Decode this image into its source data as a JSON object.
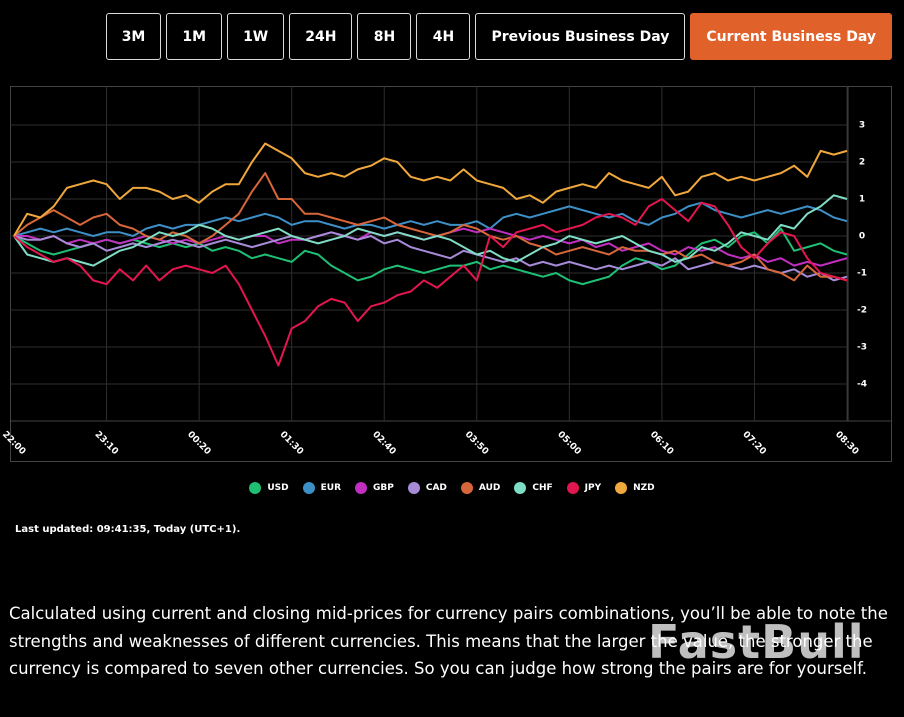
{
  "buttons": [
    "3M",
    "1M",
    "1W",
    "24H",
    "8H",
    "4H",
    "Previous Business Day",
    "Current Business Day"
  ],
  "active_button": 7,
  "chart_data": {
    "type": "line",
    "categories": [
      "22:00",
      null,
      null,
      null,
      null,
      null,
      null,
      "23:10",
      null,
      null,
      null,
      null,
      null,
      null,
      "00:20",
      null,
      null,
      null,
      null,
      null,
      null,
      "01:30",
      null,
      null,
      null,
      null,
      null,
      null,
      "02:40",
      null,
      null,
      null,
      null,
      null,
      null,
      "03:50",
      null,
      null,
      null,
      null,
      null,
      null,
      "05:00",
      null,
      null,
      null,
      null,
      null,
      null,
      "06:10",
      null,
      null,
      null,
      null,
      null,
      null,
      "07:20",
      null,
      null,
      null,
      null,
      null,
      null,
      "08:30"
    ],
    "ylim": [
      -5,
      4
    ],
    "yticks": [
      -4,
      -3,
      -2,
      -1,
      0,
      1,
      2,
      3
    ],
    "grid": true,
    "legend": "bottom",
    "series": [
      {
        "name": "USD",
        "color": "#1fbf74",
        "values": [
          0,
          -0.2,
          -0.4,
          -0.5,
          -0.4,
          -0.3,
          -0.2,
          -0.1,
          -0.2,
          -0.1,
          -0.2,
          -0.3,
          -0.2,
          -0.3,
          -0.2,
          -0.4,
          -0.3,
          -0.4,
          -0.6,
          -0.5,
          -0.6,
          -0.7,
          -0.4,
          -0.5,
          -0.8,
          -1.0,
          -1.2,
          -1.1,
          -0.9,
          -0.8,
          -0.9,
          -1.0,
          -0.9,
          -0.8,
          -0.8,
          -0.7,
          -0.9,
          -0.8,
          -0.9,
          -1.0,
          -1.1,
          -1.0,
          -1.2,
          -1.3,
          -1.2,
          -1.1,
          -0.8,
          -0.6,
          -0.7,
          -0.9,
          -0.8,
          -0.5,
          -0.2,
          -0.1,
          -0.3,
          0.0,
          0.1,
          -0.2,
          0.2,
          -0.4,
          -0.3,
          -0.2,
          -0.4,
          -0.5
        ]
      },
      {
        "name": "EUR",
        "color": "#3d8fc6",
        "values": [
          0,
          0.1,
          0.2,
          0.1,
          0.2,
          0.1,
          0.0,
          0.1,
          0.1,
          0.0,
          0.2,
          0.3,
          0.2,
          0.3,
          0.3,
          0.4,
          0.5,
          0.4,
          0.5,
          0.6,
          0.5,
          0.3,
          0.4,
          0.4,
          0.3,
          0.2,
          0.3,
          0.3,
          0.2,
          0.3,
          0.4,
          0.3,
          0.4,
          0.3,
          0.3,
          0.4,
          0.2,
          0.5,
          0.6,
          0.5,
          0.6,
          0.7,
          0.8,
          0.7,
          0.6,
          0.5,
          0.6,
          0.4,
          0.3,
          0.5,
          0.6,
          0.8,
          0.9,
          0.7,
          0.6,
          0.5,
          0.6,
          0.7,
          0.6,
          0.7,
          0.8,
          0.7,
          0.5,
          0.4
        ]
      },
      {
        "name": "GBP",
        "color": "#c02fc0",
        "values": [
          0,
          0.0,
          -0.1,
          0.0,
          -0.2,
          -0.1,
          -0.2,
          -0.1,
          -0.2,
          -0.1,
          0.0,
          -0.1,
          -0.2,
          -0.1,
          -0.2,
          -0.1,
          0.0,
          -0.1,
          0.0,
          0.0,
          -0.2,
          -0.1,
          -0.1,
          0.0,
          0.1,
          0.0,
          -0.1,
          0.1,
          0.0,
          0.1,
          0.0,
          -0.1,
          0.0,
          0.1,
          0.2,
          0.1,
          0.2,
          0.1,
          0.0,
          -0.1,
          0.0,
          -0.1,
          -0.2,
          -0.1,
          -0.3,
          -0.2,
          -0.4,
          -0.3,
          -0.2,
          -0.4,
          -0.5,
          -0.3,
          -0.4,
          -0.3,
          -0.5,
          -0.6,
          -0.5,
          -0.7,
          -0.6,
          -0.8,
          -0.7,
          -0.8,
          -0.7,
          -0.6
        ]
      },
      {
        "name": "CAD",
        "color": "#a78bd8",
        "values": [
          0,
          -0.1,
          -0.1,
          0.0,
          -0.2,
          -0.3,
          -0.2,
          -0.4,
          -0.3,
          -0.2,
          -0.3,
          -0.2,
          -0.1,
          -0.2,
          -0.3,
          -0.2,
          -0.1,
          -0.2,
          -0.3,
          -0.2,
          -0.1,
          0.0,
          -0.1,
          0.0,
          0.1,
          0.0,
          -0.1,
          0.0,
          -0.2,
          -0.1,
          -0.3,
          -0.4,
          -0.5,
          -0.6,
          -0.4,
          -0.5,
          -0.6,
          -0.7,
          -0.6,
          -0.8,
          -0.7,
          -0.8,
          -0.7,
          -0.8,
          -0.9,
          -0.8,
          -0.9,
          -0.8,
          -0.7,
          -0.8,
          -0.6,
          -0.9,
          -0.8,
          -0.7,
          -0.8,
          -0.9,
          -0.8,
          -0.9,
          -1.0,
          -0.9,
          -1.1,
          -1.0,
          -1.2,
          -1.1
        ]
      },
      {
        "name": "AUD",
        "color": "#d7673a",
        "values": [
          0,
          0.3,
          0.5,
          0.7,
          0.5,
          0.3,
          0.5,
          0.6,
          0.3,
          0.2,
          0.0,
          -0.1,
          0.1,
          0.0,
          -0.2,
          0.0,
          0.3,
          0.6,
          1.2,
          1.7,
          1.0,
          1.0,
          0.6,
          0.6,
          0.5,
          0.4,
          0.3,
          0.4,
          0.5,
          0.3,
          0.2,
          0.1,
          0.0,
          0.1,
          0.3,
          0.2,
          0.0,
          -0.1,
          0.0,
          -0.2,
          -0.3,
          -0.5,
          -0.4,
          -0.3,
          -0.4,
          -0.5,
          -0.3,
          -0.4,
          -0.4,
          -0.5,
          -0.4,
          -0.6,
          -0.5,
          -0.7,
          -0.8,
          -0.7,
          -0.5,
          -0.9,
          -1.0,
          -1.2,
          -0.8,
          -1.1,
          -1.1,
          -1.2
        ]
      },
      {
        "name": "CHF",
        "color": "#7fdcc5",
        "values": [
          0,
          -0.5,
          -0.6,
          -0.7,
          -0.6,
          -0.7,
          -0.8,
          -0.6,
          -0.4,
          -0.3,
          -0.1,
          0.1,
          0.0,
          0.1,
          0.3,
          0.2,
          0.0,
          -0.1,
          0.0,
          0.1,
          0.2,
          0.0,
          -0.1,
          -0.2,
          -0.1,
          0.0,
          0.2,
          0.1,
          0.0,
          0.1,
          0.0,
          -0.1,
          0.0,
          -0.1,
          -0.3,
          -0.5,
          -0.4,
          -0.6,
          -0.7,
          -0.5,
          -0.3,
          -0.2,
          0.0,
          -0.1,
          -0.2,
          -0.1,
          0.0,
          -0.2,
          -0.4,
          -0.5,
          -0.7,
          -0.6,
          -0.3,
          -0.4,
          -0.2,
          0.1,
          0.0,
          -0.1,
          0.3,
          0.2,
          0.6,
          0.8,
          1.1,
          1.0
        ]
      },
      {
        "name": "JPY",
        "color": "#e3164f",
        "values": [
          0,
          -0.3,
          -0.5,
          -0.7,
          -0.6,
          -0.8,
          -1.2,
          -1.3,
          -0.9,
          -1.2,
          -0.8,
          -1.2,
          -0.9,
          -0.8,
          -0.9,
          -1.0,
          -0.8,
          -1.3,
          -2.0,
          -2.7,
          -3.5,
          -2.5,
          -2.3,
          -1.9,
          -1.7,
          -1.8,
          -2.3,
          -1.9,
          -1.8,
          -1.6,
          -1.5,
          -1.2,
          -1.4,
          -1.1,
          -0.8,
          -1.2,
          0.0,
          -0.3,
          0.1,
          0.2,
          0.3,
          0.1,
          0.2,
          0.3,
          0.5,
          0.6,
          0.5,
          0.3,
          0.8,
          1.0,
          0.7,
          0.4,
          0.9,
          0.8,
          0.3,
          -0.3,
          -0.6,
          -0.2,
          0.1,
          0.0,
          -0.6,
          -1.0,
          -1.1,
          -1.2
        ]
      },
      {
        "name": "NZD",
        "color": "#f0a83c",
        "values": [
          0,
          0.6,
          0.5,
          0.8,
          1.3,
          1.4,
          1.5,
          1.4,
          1.0,
          1.3,
          1.3,
          1.2,
          1.0,
          1.1,
          0.9,
          1.2,
          1.4,
          1.4,
          2.0,
          2.5,
          2.3,
          2.1,
          1.7,
          1.6,
          1.7,
          1.6,
          1.8,
          1.9,
          2.1,
          2.0,
          1.6,
          1.5,
          1.6,
          1.5,
          1.8,
          1.5,
          1.4,
          1.3,
          1.0,
          1.1,
          0.9,
          1.2,
          1.3,
          1.4,
          1.3,
          1.7,
          1.5,
          1.4,
          1.3,
          1.6,
          1.1,
          1.2,
          1.6,
          1.7,
          1.5,
          1.6,
          1.5,
          1.6,
          1.7,
          1.9,
          1.6,
          2.3,
          2.2,
          2.3
        ]
      }
    ]
  },
  "last_updated": "Last updated: 09:41:35, Today (UTC+1).",
  "description": "Calculated using current and closing mid-prices for currency pairs combinations, you’ll be able to note the strengths and weaknesses of different currencies. This means that the larger the value, the stronger the currency is compared to seven other currencies. So you can judge how strong the pairs are for yourself.",
  "watermark": "FastBull"
}
